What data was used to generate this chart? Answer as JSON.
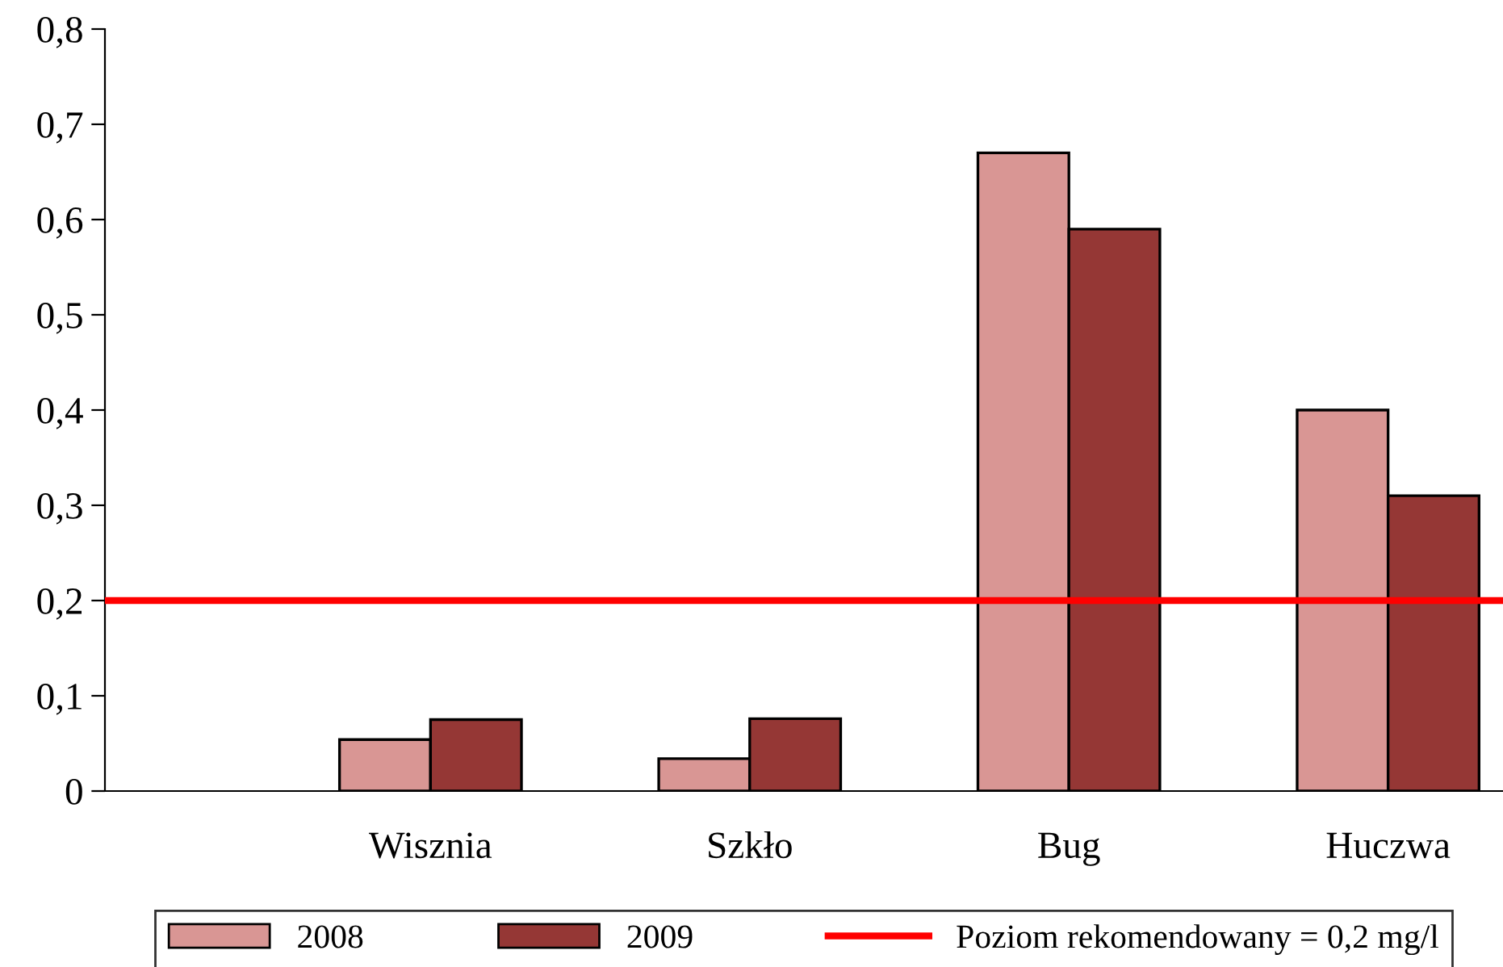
{
  "chart_data": {
    "type": "bar",
    "categories": [
      "Wisznia",
      "Szkło",
      "Bug",
      "Huczwa"
    ],
    "series": [
      {
        "name": "2008",
        "color": "#d99694",
        "values": [
          0.054,
          0.034,
          0.67,
          0.4
        ]
      },
      {
        "name": "2009",
        "color": "#953735",
        "values": [
          0.075,
          0.076,
          0.59,
          0.31
        ]
      }
    ],
    "ylim": [
      0,
      0.8
    ],
    "yticks": [
      {
        "value": 0,
        "label": "0"
      },
      {
        "value": 0.1,
        "label": "0,1"
      },
      {
        "value": 0.2,
        "label": "0,2"
      },
      {
        "value": 0.3,
        "label": "0,3"
      },
      {
        "value": 0.4,
        "label": "0,4"
      },
      {
        "value": 0.5,
        "label": "0,5"
      },
      {
        "value": 0.6,
        "label": "0,6"
      },
      {
        "value": 0.7,
        "label": "0,7"
      },
      {
        "value": 0.8,
        "label": "0,8"
      }
    ],
    "ref_lines": [
      {
        "axis": "y",
        "value": 0.2,
        "label": "Poziom rekomendowany = 0,2 mg/l",
        "color": "#ff0000",
        "line_style": "solid"
      }
    ],
    "grid": false,
    "legend": "bottom"
  }
}
